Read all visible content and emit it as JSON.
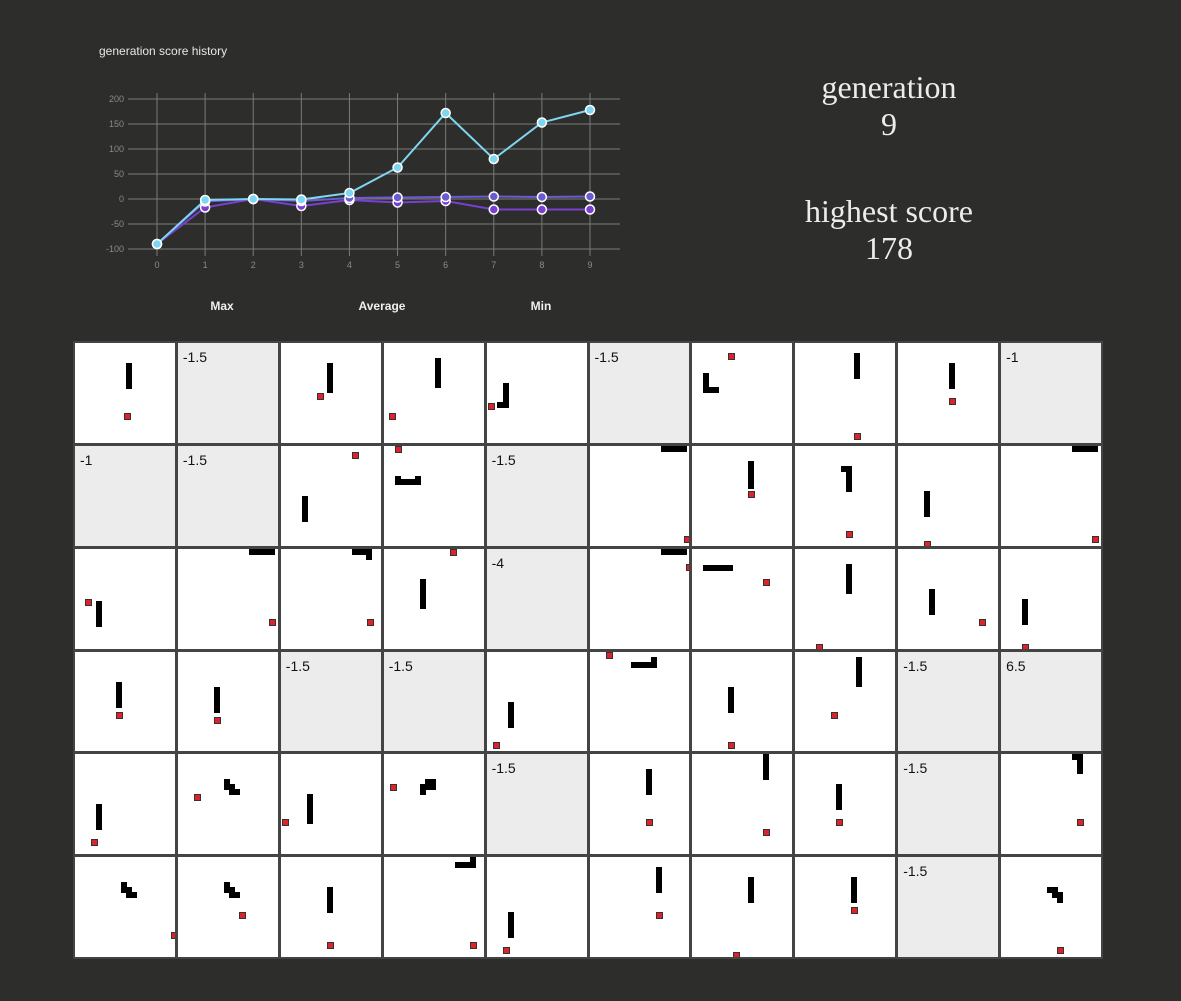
{
  "chart": {
    "title": "generation score history",
    "legend": [
      "Max",
      "Average",
      "Min"
    ],
    "colors": {
      "max": "#7fd6f0",
      "average": "#6b5bd0",
      "min": "#7a3fd0"
    }
  },
  "chart_data": {
    "type": "line",
    "title": "generation score history",
    "x": [
      0,
      1,
      2,
      3,
      4,
      5,
      6,
      7,
      8,
      9
    ],
    "ylim": [
      -100,
      200
    ],
    "yticks": [
      200,
      150,
      100,
      50,
      0,
      -50,
      -100
    ],
    "grid": true,
    "legend_position": "bottom",
    "series": [
      {
        "name": "Max",
        "values": [
          -90,
          -2,
          0,
          -1,
          12,
          63,
          172,
          80,
          153,
          178
        ]
      },
      {
        "name": "Average",
        "values": [
          -90,
          -5,
          0,
          -4,
          2,
          3,
          4,
          5,
          4,
          5
        ]
      },
      {
        "name": "Min",
        "values": [
          -90,
          -17,
          0,
          -14,
          -2,
          -7,
          -4,
          -21,
          -21,
          -21
        ]
      }
    ]
  },
  "stats": {
    "generation_label": "generation",
    "generation_value": "9",
    "score_label": "highest score",
    "score_value": "178"
  },
  "cells": [
    {
      "dead": false,
      "score": "",
      "segs": [
        [
          51,
          20,
          6,
          26
        ]
      ],
      "food": [
        [
          49,
          70
        ]
      ]
    },
    {
      "dead": true,
      "score": "-1.5",
      "segs": [],
      "food": []
    },
    {
      "dead": false,
      "score": "",
      "segs": [
        [
          46,
          20,
          6,
          30
        ]
      ],
      "food": [
        [
          36,
          50
        ]
      ]
    },
    {
      "dead": false,
      "score": "",
      "segs": [
        [
          51,
          15,
          6,
          30
        ]
      ],
      "food": [
        [
          5,
          70
        ]
      ]
    },
    {
      "dead": false,
      "score": "",
      "segs": [
        [
          16,
          40,
          6,
          25
        ],
        [
          10,
          59,
          12,
          6
        ]
      ],
      "food": [
        [
          1,
          60
        ]
      ]
    },
    {
      "dead": true,
      "score": "-1.5",
      "segs": [],
      "food": []
    },
    {
      "dead": false,
      "score": "",
      "segs": [
        [
          11,
          30,
          6,
          20
        ],
        [
          11,
          44,
          16,
          6
        ]
      ],
      "food": [
        [
          36,
          10
        ]
      ]
    },
    {
      "dead": false,
      "score": "",
      "segs": [
        [
          59,
          10,
          6,
          26
        ]
      ],
      "food": [
        [
          59,
          90
        ]
      ]
    },
    {
      "dead": false,
      "score": "",
      "segs": [
        [
          51,
          20,
          6,
          26
        ]
      ],
      "food": [
        [
          51,
          55
        ]
      ]
    },
    {
      "dead": true,
      "score": "-1",
      "segs": [],
      "food": []
    },
    {
      "dead": true,
      "score": "-1",
      "segs": [],
      "food": []
    },
    {
      "dead": true,
      "score": "-1.5",
      "segs": [],
      "food": []
    },
    {
      "dead": false,
      "score": "",
      "segs": [
        [
          21,
          50,
          6,
          26
        ]
      ],
      "food": [
        [
          71,
          6
        ]
      ]
    },
    {
      "dead": false,
      "score": "",
      "segs": [
        [
          11,
          33,
          26,
          6
        ],
        [
          11,
          30,
          6,
          9
        ],
        [
          31,
          30,
          6,
          9
        ]
      ],
      "food": [
        [
          11,
          0
        ]
      ]
    },
    {
      "dead": true,
      "score": "-1.5",
      "segs": [],
      "food": []
    },
    {
      "dead": false,
      "score": "",
      "segs": [
        [
          71,
          0,
          26,
          6
        ]
      ],
      "food": [
        [
          94,
          90
        ]
      ]
    },
    {
      "dead": false,
      "score": "",
      "segs": [
        [
          56,
          15,
          6,
          28
        ]
      ],
      "food": [
        [
          56,
          45
        ]
      ]
    },
    {
      "dead": false,
      "score": "",
      "segs": [
        [
          51,
          20,
          6,
          26
        ],
        [
          46,
          20,
          11,
          6
        ]
      ],
      "food": [
        [
          51,
          85
        ]
      ]
    },
    {
      "dead": false,
      "score": "",
      "segs": [
        [
          26,
          45,
          6,
          26
        ]
      ],
      "food": [
        [
          26,
          95
        ]
      ]
    },
    {
      "dead": false,
      "score": "",
      "segs": [
        [
          71,
          0,
          26,
          6
        ]
      ],
      "food": [
        [
          91,
          90
        ]
      ]
    },
    {
      "dead": false,
      "score": "",
      "segs": [
        [
          21,
          52,
          6,
          26
        ]
      ],
      "food": [
        [
          10,
          50
        ]
      ]
    },
    {
      "dead": false,
      "score": "",
      "segs": [
        [
          71,
          0,
          26,
          6
        ]
      ],
      "food": [
        [
          91,
          70
        ]
      ]
    },
    {
      "dead": false,
      "score": "",
      "segs": [
        [
          71,
          0,
          20,
          6
        ],
        [
          85,
          0,
          6,
          11
        ]
      ],
      "food": [
        [
          86,
          70
        ]
      ]
    },
    {
      "dead": false,
      "score": "",
      "segs": [
        [
          36,
          30,
          6,
          30
        ]
      ],
      "food": [
        [
          66,
          0
        ]
      ]
    },
    {
      "dead": true,
      "score": "-4",
      "segs": [],
      "food": []
    },
    {
      "dead": false,
      "score": "",
      "segs": [
        [
          71,
          0,
          26,
          6
        ]
      ],
      "food": [
        [
          96,
          15
        ]
      ]
    },
    {
      "dead": false,
      "score": "",
      "segs": [
        [
          11,
          16,
          30,
          6
        ]
      ],
      "food": [
        [
          71,
          30
        ]
      ]
    },
    {
      "dead": false,
      "score": "",
      "segs": [
        [
          51,
          15,
          6,
          30
        ]
      ],
      "food": [
        [
          21,
          95
        ]
      ]
    },
    {
      "dead": false,
      "score": "",
      "segs": [
        [
          31,
          40,
          6,
          26
        ]
      ],
      "food": [
        [
          81,
          70
        ]
      ]
    },
    {
      "dead": false,
      "score": "",
      "segs": [
        [
          21,
          50,
          6,
          26
        ]
      ],
      "food": [
        [
          21,
          95
        ]
      ]
    },
    {
      "dead": false,
      "score": "",
      "segs": [
        [
          41,
          30,
          6,
          26
        ]
      ],
      "food": [
        [
          41,
          60
        ]
      ]
    },
    {
      "dead": false,
      "score": "",
      "segs": [
        [
          36,
          35,
          6,
          26
        ]
      ],
      "food": [
        [
          36,
          65
        ]
      ]
    },
    {
      "dead": true,
      "score": "-1.5",
      "segs": [],
      "food": []
    },
    {
      "dead": true,
      "score": "-1.5",
      "segs": [],
      "food": []
    },
    {
      "dead": false,
      "score": "",
      "segs": [
        [
          21,
          50,
          6,
          26
        ]
      ],
      "food": [
        [
          6,
          90
        ]
      ]
    },
    {
      "dead": false,
      "score": "",
      "segs": [
        [
          41,
          10,
          26,
          6
        ],
        [
          61,
          5,
          6,
          10
        ]
      ],
      "food": [
        [
          16,
          0
        ]
      ]
    },
    {
      "dead": false,
      "score": "",
      "segs": [
        [
          36,
          35,
          6,
          26
        ]
      ],
      "food": [
        [
          36,
          90
        ]
      ]
    },
    {
      "dead": false,
      "score": "",
      "segs": [
        [
          61,
          5,
          6,
          30
        ]
      ],
      "food": [
        [
          36,
          60
        ]
      ]
    },
    {
      "dead": true,
      "score": "-1.5",
      "segs": [],
      "food": []
    },
    {
      "dead": true,
      "score": "6.5",
      "segs": [],
      "food": []
    },
    {
      "dead": false,
      "score": "",
      "segs": [
        [
          21,
          50,
          6,
          26
        ]
      ],
      "food": [
        [
          16,
          85
        ]
      ]
    },
    {
      "dead": false,
      "score": "",
      "segs": [
        [
          46,
          25,
          6,
          11
        ],
        [
          46,
          30,
          11,
          6
        ],
        [
          51,
          30,
          6,
          11
        ],
        [
          51,
          35,
          11,
          6
        ]
      ],
      "food": [
        [
          16,
          40
        ]
      ]
    },
    {
      "dead": false,
      "score": "",
      "segs": [
        [
          26,
          40,
          6,
          30
        ]
      ],
      "food": [
        [
          1,
          65
        ]
      ]
    },
    {
      "dead": false,
      "score": "",
      "segs": [
        [
          36,
          30,
          11,
          6
        ],
        [
          36,
          30,
          6,
          11
        ],
        [
          41,
          25,
          11,
          6
        ],
        [
          46,
          25,
          6,
          11
        ]
      ],
      "food": [
        [
          6,
          30
        ]
      ]
    },
    {
      "dead": true,
      "score": "-1.5",
      "segs": [],
      "food": []
    },
    {
      "dead": false,
      "score": "",
      "segs": [
        [
          56,
          15,
          6,
          26
        ]
      ],
      "food": [
        [
          56,
          65
        ]
      ]
    },
    {
      "dead": false,
      "score": "",
      "segs": [
        [
          71,
          0,
          6,
          26
        ]
      ],
      "food": [
        [
          71,
          75
        ]
      ]
    },
    {
      "dead": false,
      "score": "",
      "segs": [
        [
          41,
          30,
          6,
          26
        ]
      ],
      "food": [
        [
          41,
          65
        ]
      ]
    },
    {
      "dead": true,
      "score": "-1.5",
      "segs": [],
      "food": []
    },
    {
      "dead": false,
      "score": "",
      "segs": [
        [
          71,
          0,
          11,
          6
        ],
        [
          76,
          0,
          6,
          20
        ]
      ],
      "food": [
        [
          76,
          65
        ]
      ]
    },
    {
      "dead": false,
      "score": "",
      "segs": [
        [
          46,
          25,
          6,
          11
        ],
        [
          46,
          30,
          11,
          6
        ],
        [
          51,
          30,
          6,
          11
        ],
        [
          51,
          35,
          11,
          6
        ]
      ],
      "food": [
        [
          96,
          75
        ]
      ]
    },
    {
      "dead": false,
      "score": "",
      "segs": [
        [
          46,
          25,
          6,
          11
        ],
        [
          46,
          30,
          11,
          6
        ],
        [
          51,
          30,
          6,
          11
        ],
        [
          51,
          35,
          11,
          6
        ]
      ],
      "food": [
        [
          61,
          55
        ]
      ]
    },
    {
      "dead": false,
      "score": "",
      "segs": [
        [
          46,
          30,
          6,
          26
        ]
      ],
      "food": [
        [
          46,
          85
        ]
      ]
    },
    {
      "dead": false,
      "score": "",
      "segs": [
        [
          71,
          5,
          20,
          6
        ],
        [
          86,
          0,
          6,
          11
        ]
      ],
      "food": [
        [
          86,
          85
        ]
      ]
    },
    {
      "dead": false,
      "score": "",
      "segs": [
        [
          21,
          55,
          6,
          26
        ]
      ],
      "food": [
        [
          16,
          90
        ]
      ]
    },
    {
      "dead": false,
      "score": "",
      "segs": [
        [
          66,
          10,
          6,
          26
        ]
      ],
      "food": [
        [
          66,
          55
        ]
      ]
    },
    {
      "dead": false,
      "score": "",
      "segs": [
        [
          56,
          20,
          6,
          26
        ]
      ],
      "food": [
        [
          41,
          95
        ]
      ]
    },
    {
      "dead": false,
      "score": "",
      "segs": [
        [
          56,
          20,
          6,
          26
        ]
      ],
      "food": [
        [
          56,
          50
        ]
      ]
    },
    {
      "dead": true,
      "score": "-1.5",
      "segs": [],
      "food": []
    },
    {
      "dead": false,
      "score": "",
      "segs": [
        [
          46,
          30,
          11,
          6
        ],
        [
          51,
          30,
          6,
          11
        ],
        [
          56,
          35,
          6,
          11
        ]
      ],
      "food": [
        [
          56,
          90
        ]
      ]
    }
  ]
}
